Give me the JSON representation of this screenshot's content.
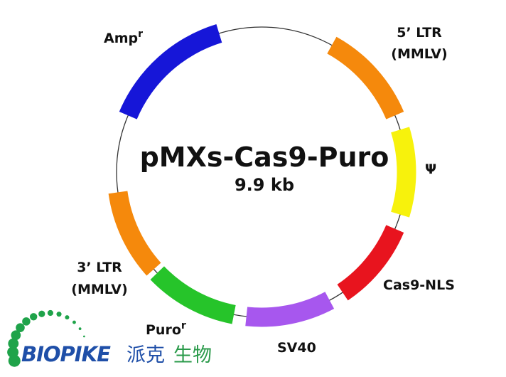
{
  "plasmid": {
    "name": "pMXs-Cas9-Puro",
    "size": "9.9 kb",
    "backbone_color": "#333333",
    "features": [
      {
        "label": "Amp",
        "sup": "r",
        "color": "#1616d8",
        "start_deg": 293,
        "end_deg": 343
      },
      {
        "label": "5’ LTR",
        "label2": "(MMLV)",
        "color": "#f5890c",
        "start_deg": 29,
        "end_deg": 67
      },
      {
        "label": "Ψ",
        "color": "#f7f20c",
        "start_deg": 73,
        "end_deg": 107
      },
      {
        "label": "Cas9-NLS",
        "color": "#e8141e",
        "start_deg": 113,
        "end_deg": 146
      },
      {
        "label": "SV40",
        "color": "#a757ee",
        "start_deg": 152,
        "end_deg": 186
      },
      {
        "label": "Puro",
        "sup": "r",
        "color": "#26c42a",
        "start_deg": 191,
        "end_deg": 226
      },
      {
        "label": "3’ LTR",
        "label2": "(MMLV)",
        "color": "#f5890c",
        "start_deg": 228,
        "end_deg": 262
      }
    ]
  },
  "logo": {
    "text_en": "BIOPIKE",
    "text_cn_1": "派克",
    "text_cn_2": "生物",
    "dot_color": "#1fa34a",
    "text_color": "#1f4fa8"
  }
}
